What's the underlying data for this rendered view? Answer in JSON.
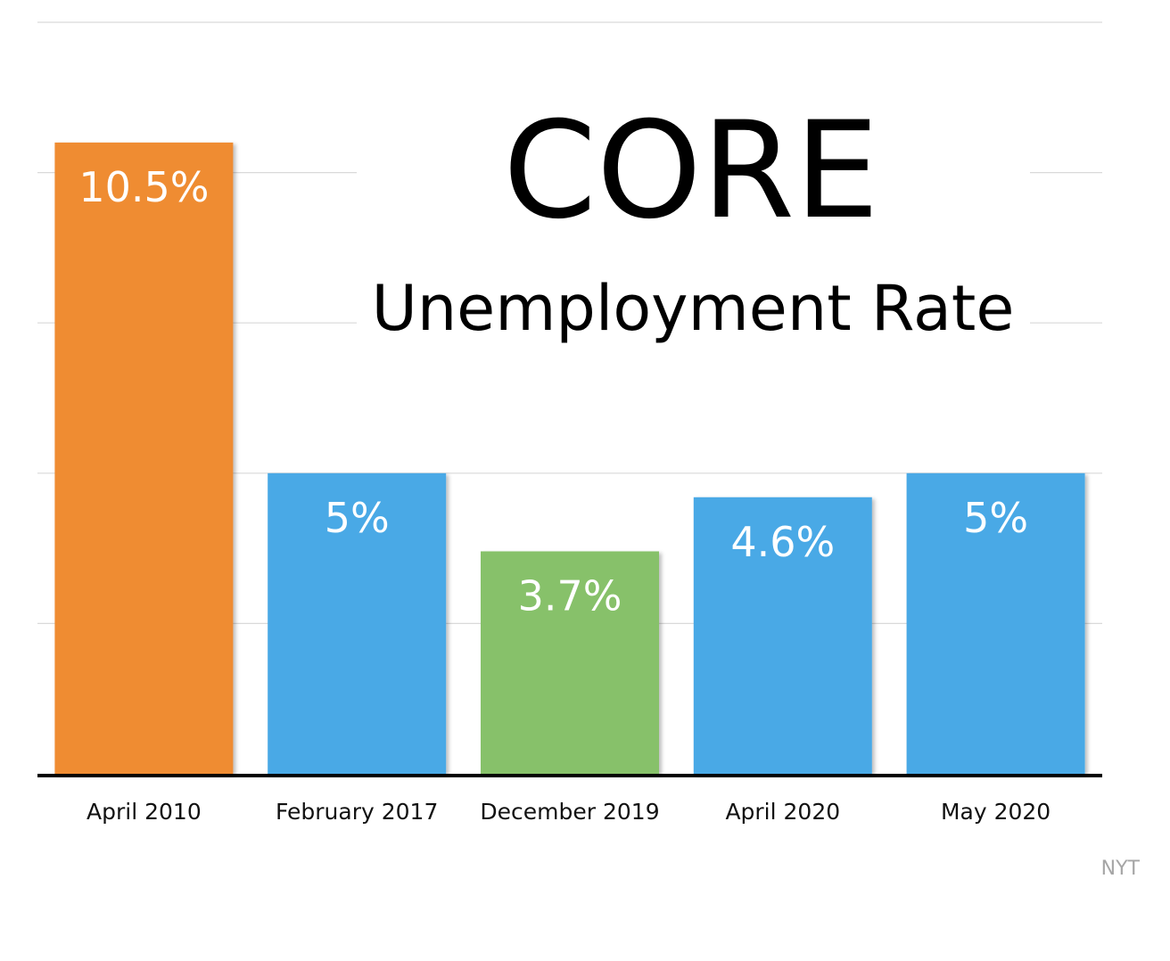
{
  "chart_data": {
    "type": "bar",
    "title": "CORE",
    "subtitle": "Unemployment Rate",
    "categories": [
      "April 2010",
      "February 2017",
      "December 2019",
      "April 2020",
      "May 2020"
    ],
    "values": [
      10.5,
      5,
      3.7,
      4.6,
      5
    ],
    "value_labels": [
      "10.5%",
      "5%",
      "3.7%",
      "4.6%",
      "5%"
    ],
    "colors": [
      "#ef8c33",
      "#4aa9e6",
      "#87c16a",
      "#4aa9e6",
      "#4aa9e6"
    ],
    "ylim": [
      0,
      12.5
    ],
    "grid": true,
    "source": "NYT"
  }
}
